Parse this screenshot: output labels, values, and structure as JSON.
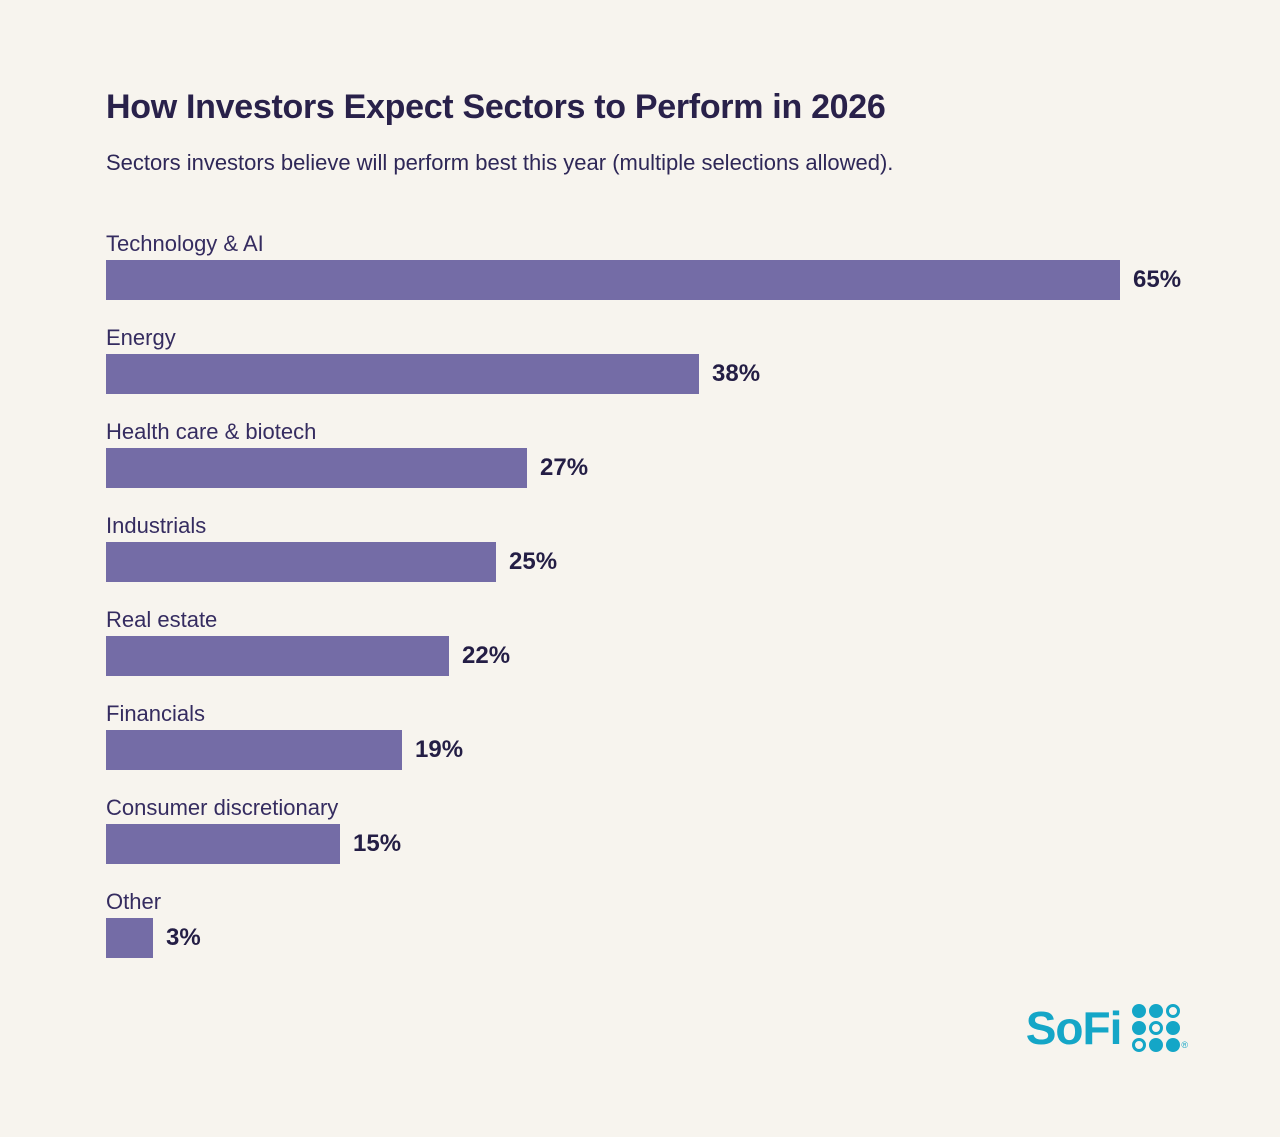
{
  "chart": {
    "title": "How Investors Expect Sectors to Perform in 2026",
    "subtitle": "Sectors investors believe will perform best this year (multiple selections allowed)."
  },
  "chart_data": {
    "type": "bar",
    "orientation": "horizontal",
    "title": "How Investors Expect Sectors to Perform in 2026",
    "subtitle": "Sectors investors believe will perform best this year (multiple selections allowed).",
    "categories": [
      "Technology & AI",
      "Energy",
      "Health care & biotech",
      "Industrials",
      "Real estate",
      "Financials",
      "Consumer discretionary",
      "Other"
    ],
    "values": [
      65,
      38,
      27,
      25,
      22,
      19,
      15,
      3
    ],
    "value_labels": [
      "65%",
      "38%",
      "27%",
      "25%",
      "22%",
      "19%",
      "15%",
      "3%"
    ],
    "unit": "%",
    "xlim": [
      0,
      65
    ],
    "grid": false,
    "legend": false,
    "bar_color": "#746CA6"
  },
  "footer": {
    "logo_text": "SoFi",
    "logo_registered_mark": "®",
    "logo_dots_pattern": [
      [
        1,
        1,
        0
      ],
      [
        1,
        0,
        1
      ],
      [
        0,
        1,
        1
      ]
    ]
  },
  "colors": {
    "background": "#F7F4EE",
    "bar": "#746CA6",
    "title": "#29214A",
    "label": "#352C60",
    "value": "#241E45",
    "logo_teal": "#14A6C7"
  }
}
